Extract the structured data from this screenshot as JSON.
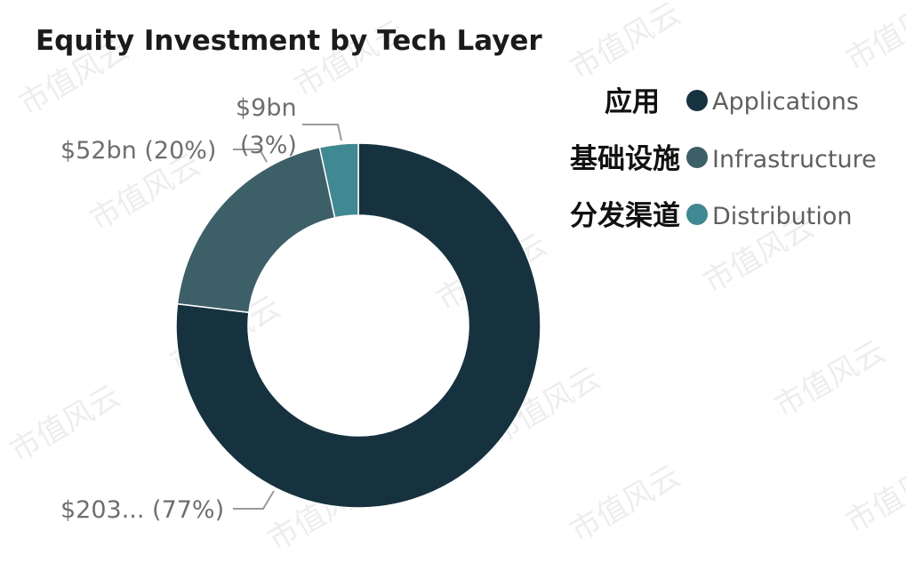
{
  "watermark": "市值风云",
  "colors": {
    "applications": "#17323f",
    "infrastructure": "#3d5f67",
    "distribution": "#408892"
  },
  "chart_data": {
    "type": "pie",
    "variant": "donut",
    "title": "Equity Investment by Tech Layer",
    "slices": [
      {
        "name": "Applications",
        "name_cn": "应用",
        "value": 203,
        "percent": 77,
        "label": "$203... (77%)",
        "color": "#17323f"
      },
      {
        "name": "Infrastructure",
        "name_cn": "基础设施",
        "value": 52,
        "percent": 20,
        "label": "$52bn (20%)",
        "color": "#3d5f67"
      },
      {
        "name": "Distribution",
        "name_cn": "分发渠道",
        "value": 9,
        "percent": 3,
        "label_line1": "$9bn",
        "label_line2": "(3%)",
        "color": "#408892"
      }
    ],
    "legend_position": "top-right"
  }
}
